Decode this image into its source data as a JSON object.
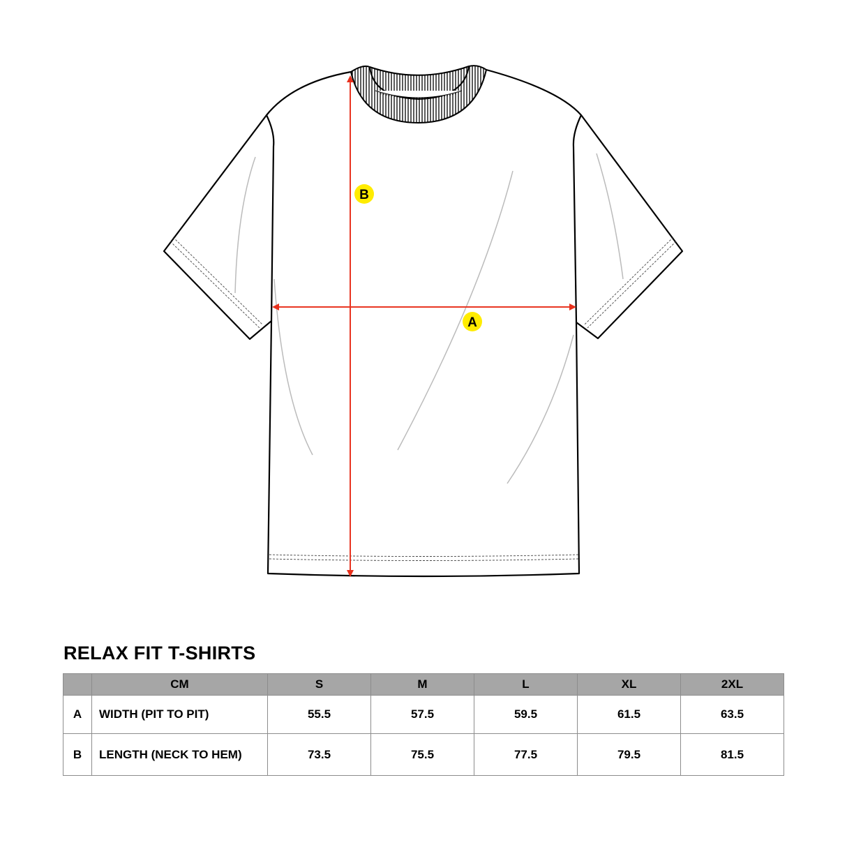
{
  "diagram": {
    "labels": {
      "width": "A",
      "length": "B"
    },
    "colors": {
      "arrow": "#e8301c",
      "badge": "#ffec00",
      "outline": "#000000",
      "header": "#a6a6a6"
    }
  },
  "size_chart": {
    "title": "RELAX FIT T-SHIRTS",
    "unit_header": "CM",
    "sizes": [
      "S",
      "M",
      "L",
      "XL",
      "2XL"
    ],
    "rows": [
      {
        "key": "A",
        "label": "WIDTH (PIT TO PIT)",
        "values": [
          "55.5",
          "57.5",
          "59.5",
          "61.5",
          "63.5"
        ]
      },
      {
        "key": "B",
        "label": "LENGTH (NECK TO HEM)",
        "values": [
          "73.5",
          "75.5",
          "77.5",
          "79.5",
          "81.5"
        ]
      }
    ]
  }
}
